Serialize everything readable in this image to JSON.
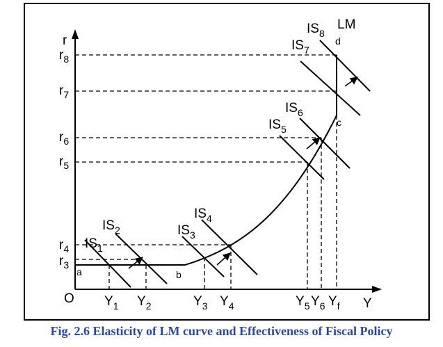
{
  "figure": {
    "caption": "Fig. 2.6 Elasticity of LM curve and Effectiveness of Fiscal Policy",
    "y_axis_label": "r",
    "x_axis_label": "Y",
    "origin_label": "O",
    "curve_label": "LM",
    "colors": {
      "caption": "#2a46a6",
      "lines": "#000000"
    }
  },
  "chart_data": {
    "type": "diagram",
    "interest_rates": [
      {
        "base": "r",
        "sub": "3"
      },
      {
        "base": "r",
        "sub": "4"
      },
      {
        "base": "r",
        "sub": "5"
      },
      {
        "base": "r",
        "sub": "6"
      },
      {
        "base": "r",
        "sub": "7"
      },
      {
        "base": "r",
        "sub": "8"
      }
    ],
    "incomes": [
      {
        "base": "Y",
        "sub": "1"
      },
      {
        "base": "Y",
        "sub": "2"
      },
      {
        "base": "Y",
        "sub": "3"
      },
      {
        "base": "Y",
        "sub": "4"
      },
      {
        "base": "Y",
        "sub": "5"
      },
      {
        "base": "Y",
        "sub": "6"
      },
      {
        "base": "Y",
        "sub": "f"
      }
    ],
    "is_curves": [
      {
        "base": "IS",
        "sub": "1"
      },
      {
        "base": "IS",
        "sub": "2"
      },
      {
        "base": "IS",
        "sub": "3"
      },
      {
        "base": "IS",
        "sub": "4"
      },
      {
        "base": "IS",
        "sub": "5"
      },
      {
        "base": "IS",
        "sub": "6"
      },
      {
        "base": "IS",
        "sub": "7"
      },
      {
        "base": "IS",
        "sub": "8"
      }
    ],
    "lm_points": [
      "a",
      "b",
      "c",
      "d"
    ]
  }
}
